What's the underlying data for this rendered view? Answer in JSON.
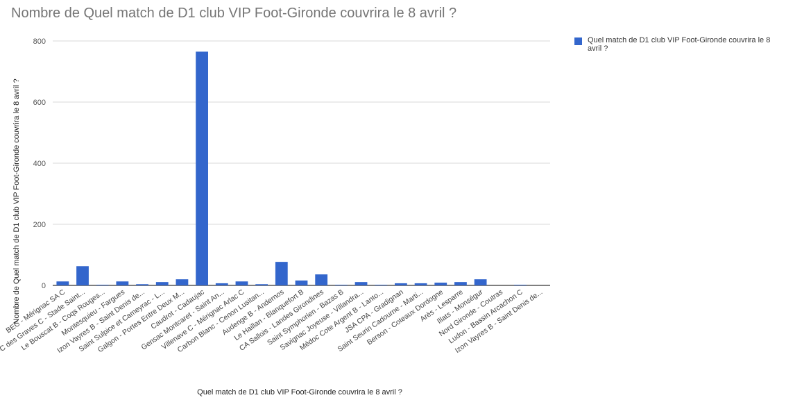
{
  "chart_data": {
    "type": "bar",
    "title": "Nombre de Quel match de D1 club VIP Foot-Gironde couvrira le 8 avril ?",
    "xlabel": "Quel match de D1 club VIP Foot-Gironde couvrira le 8 avril ?",
    "ylabel": "Nombre de Quel match de D1 club VIP Foot-Gironde couvrira le 8 avril ?",
    "ylim": [
      0,
      800
    ],
    "yticks": [
      0,
      200,
      400,
      600,
      800
    ],
    "grid": true,
    "legend_position": "top-right",
    "color": "#3366cc",
    "categories": [
      "BEC - Mérignac SA C",
      "FC des Graves C - Stade Saint...",
      "Le Bouscat B - Coqs Rouges...",
      "Montesquieu - Fargues",
      "Izon Vayres B - Saint Denis de...",
      "Saint Sulpice et Cameyrac - L...",
      "Galgon - Portes Entre Deux M...",
      "Caudrot - Cadaujac",
      "Gensac Montcaret - Saint An...",
      "Villenave C - Mérignac Arlac C",
      "Carbon Blanc - Cenon Lusitan...",
      "Audenge B - Andernos",
      "Le Haillan - Blanquefort B",
      "CA Sallois - Landes Girondines",
      "Saint Symphorien - Bazas B",
      "Savignac Joyeuse - Villandra...",
      "Médoc Cote Argent B - Lanto...",
      "JSA CPA - Gradignan",
      "Saint Seurin Cadourne - Marti...",
      "Berson - Coteaux Dordogne",
      "Arès - Lesparre",
      "Illats - Monségur",
      "Nord Gironde - Coutras",
      "Ludon - Bassin Arcachon C",
      "Izon Vayres B - Saint Denis de..."
    ],
    "series": [
      {
        "name": "Quel match de D1 club VIP Foot-Gironde couvrira le 8 avril ?",
        "values": [
          13,
          63,
          2,
          13,
          4,
          11,
          20,
          765,
          7,
          13,
          4,
          77,
          16,
          36,
          2,
          11,
          2,
          7,
          7,
          9,
          11,
          20,
          0,
          2,
          0
        ]
      }
    ]
  }
}
